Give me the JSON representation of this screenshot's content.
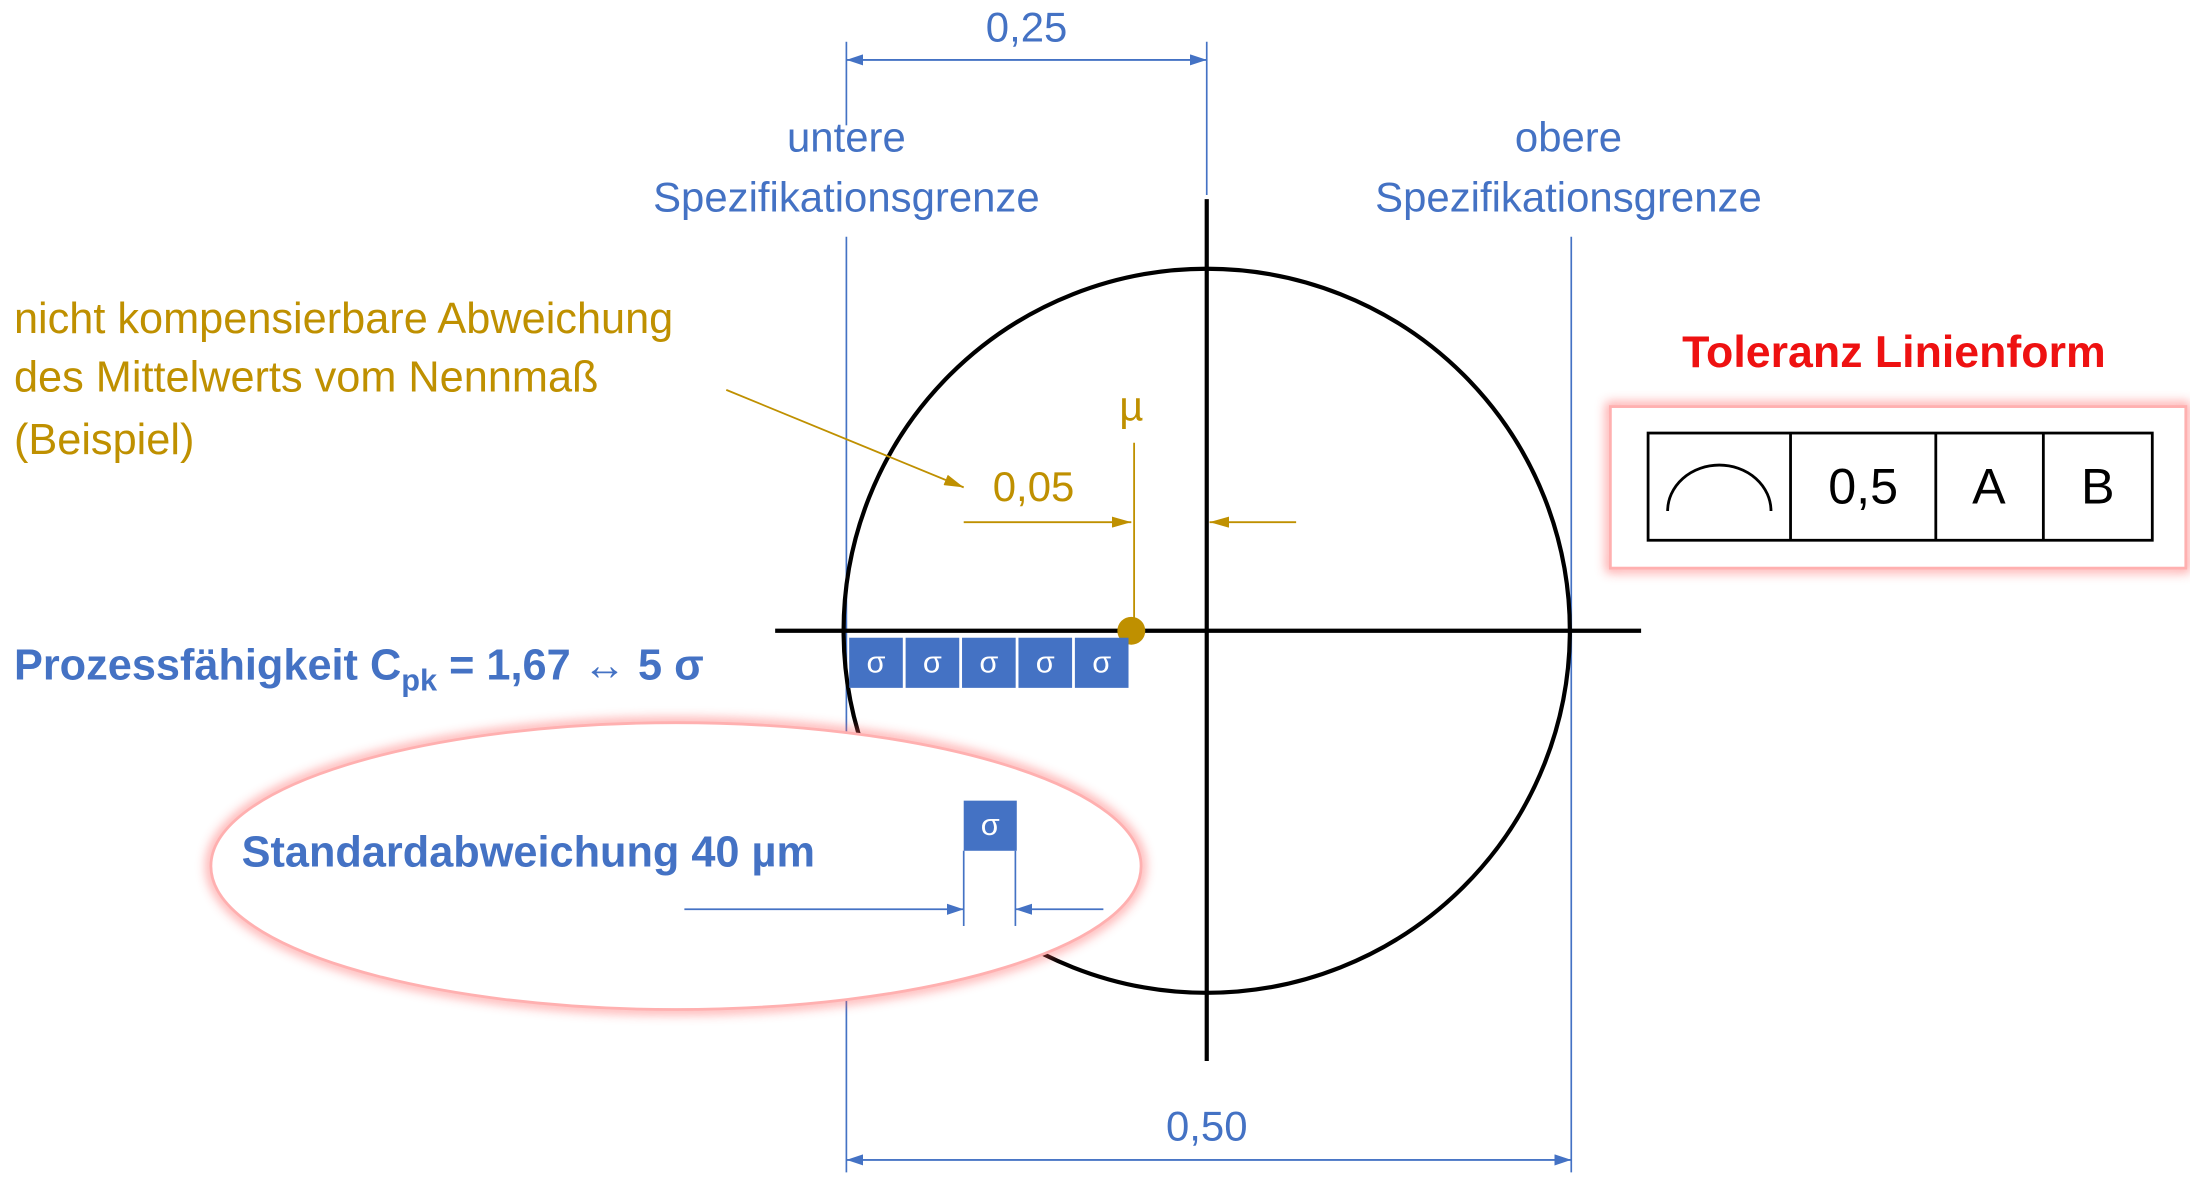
{
  "dimensions": {
    "top": "0,25",
    "bottom": "0,50",
    "offset": "0,05"
  },
  "lower_limit": {
    "lines": [
      "untere",
      "Spezifikationsgrenze"
    ]
  },
  "upper_limit": {
    "lines": [
      "obere",
      "Spezifikationsgrenze"
    ]
  },
  "annotation": {
    "lines": [
      "nicht kompensierbare Abweichung",
      "des Mittelwerts vom Nennmaß",
      "(Beispiel)"
    ]
  },
  "mean_symbol": "µ",
  "cpk": {
    "label": "Prozessfähigkeit C",
    "subscript": "pk",
    "rest": " = 1,67 ↔ 5 σ",
    "sigma_boxes": [
      "σ",
      "σ",
      "σ",
      "σ",
      "σ"
    ]
  },
  "std_dev": {
    "label": "Standardabweichung 40 µm",
    "sigma_box": "σ"
  },
  "tolerance": {
    "title": "Toleranz Linienform",
    "cells": [
      "0,5",
      "A",
      "B"
    ]
  }
}
